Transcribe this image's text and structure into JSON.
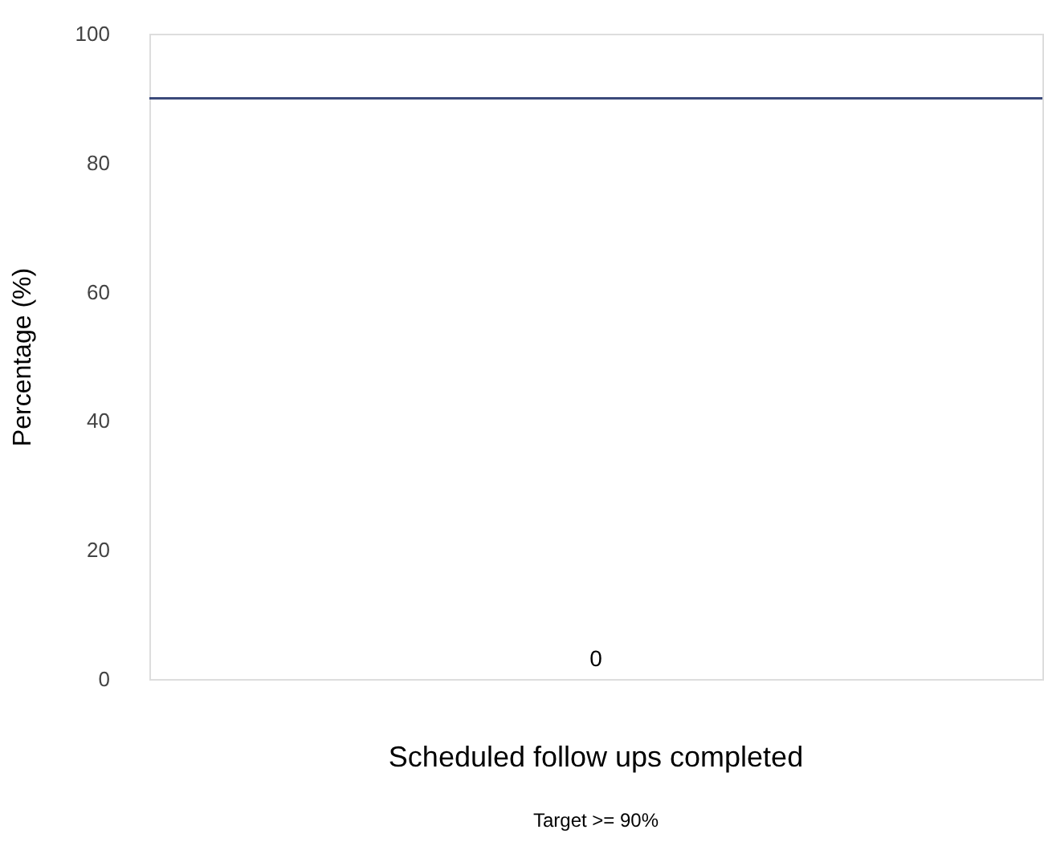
{
  "chart_data": {
    "type": "bar",
    "categories": [
      "Scheduled follow ups completed"
    ],
    "values": [
      0
    ],
    "data_labels": true,
    "ylabel": "Percentage (%)",
    "ylim": [
      0,
      100
    ],
    "yticks": [
      0,
      20,
      40,
      60,
      80,
      100
    ],
    "grid": false,
    "ref_lines": [
      {
        "axis": "y",
        "value": 90,
        "label": null,
        "color": "#3b4a7a"
      }
    ],
    "annotations": [
      "Target >= 90%"
    ]
  }
}
